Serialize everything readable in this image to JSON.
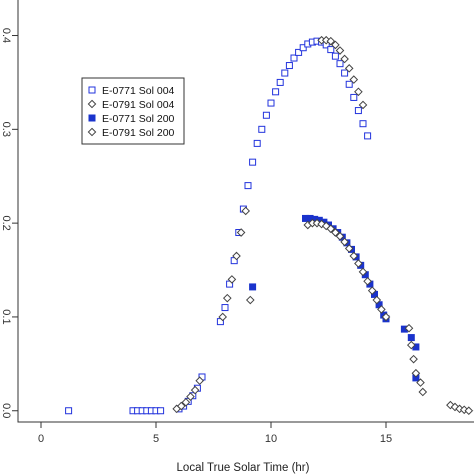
{
  "chart_data": {
    "type": "scatter",
    "title": "",
    "xlabel": "Local True Solar Time (hr)",
    "ylabel": "",
    "xlim": [
      -1.0,
      19.0
    ],
    "ylim": [
      -0.012,
      0.44
    ],
    "xticks": [
      0,
      5,
      10,
      15
    ],
    "xtick_labels": [
      "0",
      "5",
      "10",
      "15"
    ],
    "yticks": [
      0.0,
      0.1,
      0.2,
      0.3,
      0.4
    ],
    "ytick_labels": [
      "0.0",
      "0.1",
      "0.2",
      "0.3",
      "0.4"
    ],
    "grid": false,
    "legend_position": "upper-left",
    "series": [
      {
        "name": "E-0771 Sol 004",
        "marker": "open-square",
        "color": "#2233dd",
        "points": [
          [
            1.2,
            0.0
          ],
          [
            4.0,
            0.0
          ],
          [
            4.2,
            0.0
          ],
          [
            4.4,
            0.0
          ],
          [
            4.6,
            0.0
          ],
          [
            4.8,
            0.0
          ],
          [
            5.0,
            0.0
          ],
          [
            5.2,
            0.0
          ],
          [
            6.0,
            0.002
          ],
          [
            6.2,
            0.005
          ],
          [
            6.4,
            0.01
          ],
          [
            6.6,
            0.016
          ],
          [
            6.8,
            0.024
          ],
          [
            7.0,
            0.036
          ],
          [
            7.8,
            0.095
          ],
          [
            8.0,
            0.11
          ],
          [
            8.2,
            0.135
          ],
          [
            8.4,
            0.16
          ],
          [
            8.6,
            0.19
          ],
          [
            8.8,
            0.215
          ],
          [
            9.0,
            0.24
          ],
          [
            9.2,
            0.265
          ],
          [
            9.4,
            0.285
          ],
          [
            9.6,
            0.3
          ],
          [
            9.8,
            0.315
          ],
          [
            10.0,
            0.328
          ],
          [
            10.2,
            0.34
          ],
          [
            10.4,
            0.35
          ],
          [
            10.6,
            0.36
          ],
          [
            10.8,
            0.368
          ],
          [
            11.0,
            0.376
          ],
          [
            11.2,
            0.382
          ],
          [
            11.4,
            0.387
          ],
          [
            11.6,
            0.391
          ],
          [
            11.8,
            0.393
          ],
          [
            12.0,
            0.394
          ],
          [
            12.2,
            0.393
          ],
          [
            12.4,
            0.39
          ],
          [
            12.6,
            0.385
          ],
          [
            12.8,
            0.378
          ],
          [
            13.0,
            0.37
          ],
          [
            13.2,
            0.36
          ],
          [
            13.4,
            0.348
          ],
          [
            13.6,
            0.334
          ],
          [
            13.8,
            0.32
          ],
          [
            14.0,
            0.306
          ],
          [
            14.2,
            0.293
          ]
        ]
      },
      {
        "name": "E-0791 Sol 004",
        "marker": "open-diamond",
        "color": "#444444",
        "points": [
          [
            12.2,
            0.395
          ],
          [
            12.4,
            0.395
          ],
          [
            12.6,
            0.394
          ],
          [
            12.8,
            0.39
          ],
          [
            13.0,
            0.384
          ],
          [
            13.2,
            0.375
          ],
          [
            13.4,
            0.365
          ],
          [
            13.6,
            0.353
          ],
          [
            13.8,
            0.34
          ],
          [
            14.0,
            0.326
          ]
        ]
      },
      {
        "name": "E-0771 Sol 200",
        "marker": "filled-square",
        "color": "#1a33cc",
        "points": [
          [
            9.2,
            0.132
          ],
          [
            11.5,
            0.205
          ],
          [
            11.7,
            0.205
          ],
          [
            11.9,
            0.204
          ],
          [
            12.1,
            0.203
          ],
          [
            12.3,
            0.201
          ],
          [
            12.5,
            0.198
          ],
          [
            12.7,
            0.194
          ],
          [
            12.9,
            0.19
          ],
          [
            13.1,
            0.185
          ],
          [
            13.3,
            0.179
          ],
          [
            13.5,
            0.172
          ],
          [
            13.7,
            0.164
          ],
          [
            13.9,
            0.155
          ],
          [
            14.1,
            0.145
          ],
          [
            14.3,
            0.135
          ],
          [
            14.5,
            0.124
          ],
          [
            14.7,
            0.113
          ],
          [
            14.9,
            0.102
          ],
          [
            15.0,
            0.098
          ],
          [
            15.8,
            0.087
          ],
          [
            16.3,
            0.035
          ],
          [
            16.1,
            0.078
          ],
          [
            16.3,
            0.068
          ]
        ]
      },
      {
        "name": "E-0791 Sol 200",
        "marker": "open-diamond",
        "color": "#444444",
        "points": [
          [
            5.9,
            0.002
          ],
          [
            6.1,
            0.005
          ],
          [
            6.3,
            0.009
          ],
          [
            6.5,
            0.015
          ],
          [
            6.7,
            0.022
          ],
          [
            6.9,
            0.032
          ],
          [
            7.9,
            0.1
          ],
          [
            8.1,
            0.12
          ],
          [
            8.3,
            0.14
          ],
          [
            8.5,
            0.165
          ],
          [
            8.7,
            0.19
          ],
          [
            8.9,
            0.213
          ],
          [
            9.1,
            0.118
          ],
          [
            11.6,
            0.198
          ],
          [
            11.8,
            0.2
          ],
          [
            12.0,
            0.2
          ],
          [
            12.2,
            0.199
          ],
          [
            12.4,
            0.197
          ],
          [
            12.6,
            0.194
          ],
          [
            12.8,
            0.19
          ],
          [
            13.0,
            0.186
          ],
          [
            13.2,
            0.18
          ],
          [
            13.4,
            0.173
          ],
          [
            13.6,
            0.165
          ],
          [
            13.8,
            0.157
          ],
          [
            14.0,
            0.148
          ],
          [
            14.2,
            0.138
          ],
          [
            14.4,
            0.128
          ],
          [
            14.6,
            0.118
          ],
          [
            14.8,
            0.108
          ],
          [
            15.0,
            0.1
          ],
          [
            16.0,
            0.088
          ],
          [
            16.1,
            0.07
          ],
          [
            16.2,
            0.055
          ],
          [
            16.3,
            0.04
          ],
          [
            16.5,
            0.03
          ],
          [
            16.6,
            0.02
          ],
          [
            17.8,
            0.006
          ],
          [
            18.0,
            0.004
          ],
          [
            18.2,
            0.002
          ],
          [
            18.4,
            0.001
          ],
          [
            18.6,
            0.0
          ],
          [
            19.0,
            0.0
          ]
        ]
      }
    ]
  }
}
